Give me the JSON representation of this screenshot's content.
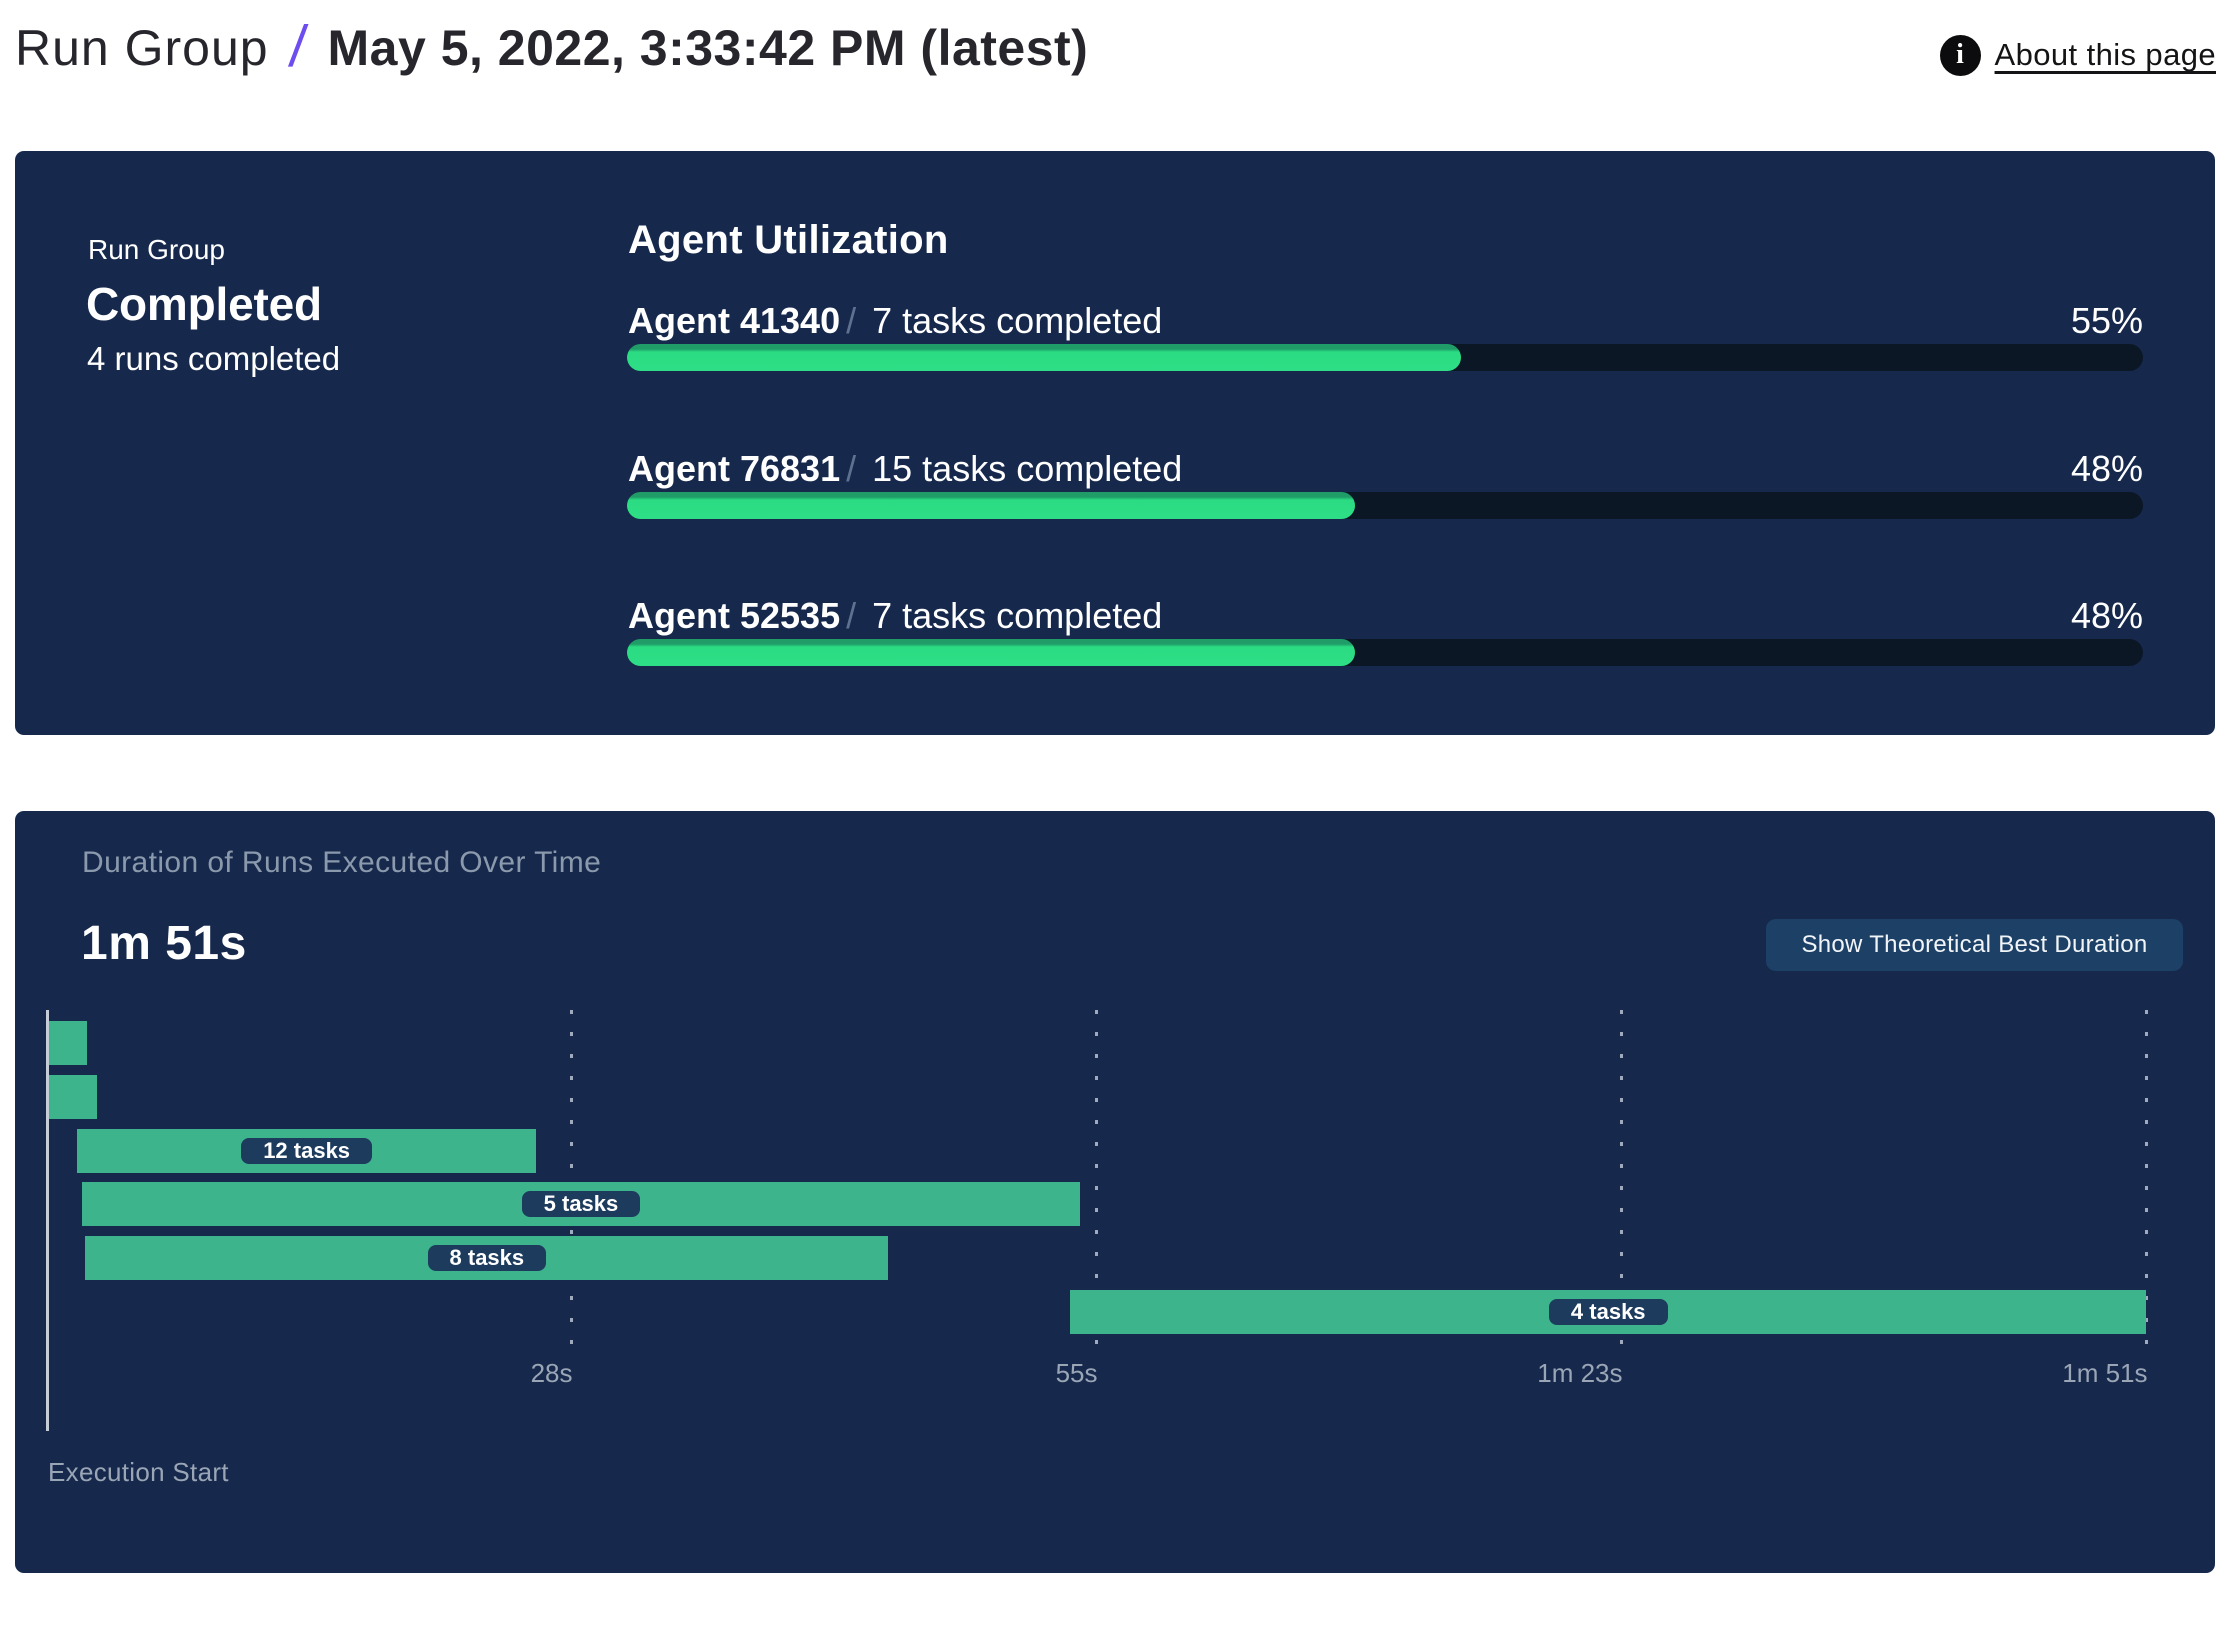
{
  "header": {
    "breadcrumb_root": "Run Group",
    "breadcrumb_separator": "/",
    "breadcrumb_current": "May 5, 2022, 3:33:42 PM (latest)",
    "info_icon_glyph": "i",
    "about_link": "About this page"
  },
  "status_card": {
    "label": "Run Group",
    "status": "Completed",
    "runs_summary": "4 runs completed",
    "utilization_heading": "Agent Utilization"
  },
  "duration_card": {
    "title": "Duration of Runs Executed Over Time",
    "total_duration": "1m 51s",
    "button_label": "Show Theoretical Best Duration",
    "axis_label": "Execution Start"
  },
  "colors": {
    "card_background": "#16294c",
    "progress_green": "#2bdc83",
    "gantt_teal": "#3eb48d",
    "track_dark": "#0c1726",
    "pill_navy": "#1d3c5d",
    "button_navy": "#1d4166",
    "accent_purple": "#6d4df0",
    "muted_slate": "#8b99ac"
  },
  "chart_data": [
    {
      "type": "bar",
      "title": "Agent Utilization",
      "categories": [
        "Agent 41340",
        "Agent 76831",
        "Agent 52535"
      ],
      "values": [
        55,
        48,
        48
      ],
      "series_labels": [
        "7 tasks completed",
        "15 tasks completed",
        "7 tasks completed"
      ],
      "value_suffix": "%",
      "xlim": [
        0,
        100
      ],
      "orientation": "horizontal"
    },
    {
      "type": "gantt",
      "title": "Duration of Runs Executed Over Time",
      "total_duration_label": "1m 51s",
      "xlabel": "Execution Start",
      "xlim_seconds": [
        0,
        111
      ],
      "x_ticks": [
        {
          "t": 27.75,
          "label": "28s"
        },
        {
          "t": 55.5,
          "label": "55s"
        },
        {
          "t": 83.25,
          "label": "1m 23s"
        },
        {
          "t": 111,
          "label": "1m 51s"
        }
      ],
      "bars": [
        {
          "start_s": 0.15,
          "end_s": 2.15,
          "label": ""
        },
        {
          "start_s": 0.15,
          "end_s": 2.65,
          "label": ""
        },
        {
          "start_s": 1.6,
          "end_s": 25.9,
          "label": "12 tasks"
        },
        {
          "start_s": 1.85,
          "end_s": 54.65,
          "label": "5 tasks"
        },
        {
          "start_s": 2.05,
          "end_s": 44.5,
          "label": "8 tasks"
        },
        {
          "start_s": 54.1,
          "end_s": 111,
          "label": "4 tasks"
        }
      ]
    }
  ]
}
